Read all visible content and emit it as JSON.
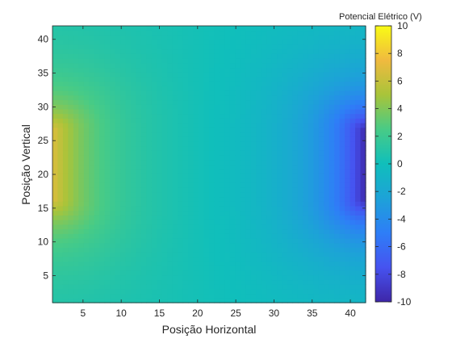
{
  "chart_data": {
    "type": "heatmap",
    "xlabel": "Posição Horizontal",
    "ylabel": "Posição Vertical",
    "xlim": [
      1,
      42
    ],
    "ylim": [
      1,
      42
    ],
    "x_ticks": [
      5,
      10,
      15,
      20,
      25,
      30,
      35,
      40
    ],
    "y_ticks": [
      5,
      10,
      15,
      20,
      25,
      30,
      35,
      40
    ],
    "colorbar": {
      "title": "Potencial Elétrico (V)",
      "range": [
        -10,
        10
      ],
      "ticks": [
        10,
        8,
        6,
        4,
        2,
        0,
        -2,
        -4,
        -6,
        -8,
        -10
      ],
      "colormap": "parula"
    },
    "field": {
      "description_of_sources": "positive boundary segment on left edge, negative on right edge",
      "sources": [
        {
          "x": 1,
          "y_range": [
            16.5,
            26.5
          ],
          "value": 7
        },
        {
          "x": 42,
          "y_range": [
            16.5,
            26.5
          ],
          "value": -10
        }
      ],
      "background_value": 0.3
    }
  }
}
